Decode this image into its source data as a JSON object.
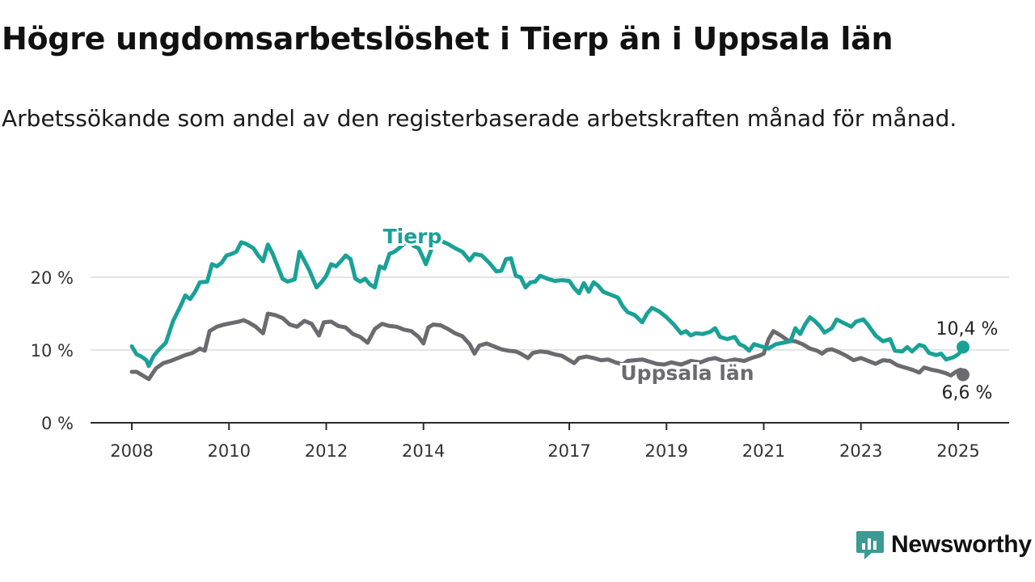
{
  "title": "Högre ungdomsarbetslöshet i Tierp än i Uppsala län",
  "subtitle": "Arbetssökande som andel av den registerbaserade arbetskraften månad för månad.",
  "brand": {
    "name": "Newsworthy",
    "icon": "newsworthy-logo-icon",
    "color": "#3a9b93"
  },
  "chart_data": {
    "type": "line",
    "title": "Högre ungdomsarbetslöshet i Tierp än i Uppsala län",
    "subtitle": "Arbetssökande som andel av den registerbaserade arbetskraften månad för månad.",
    "xlabel": "",
    "ylabel": "",
    "x_range": [
      2008.0,
      2025.1
    ],
    "ylim": [
      0,
      26
    ],
    "y_ticks": [
      0,
      10,
      20
    ],
    "y_tick_labels": [
      "0 %",
      "10 %",
      "20 %"
    ],
    "x_ticks": [
      2008,
      2010,
      2012,
      2014,
      2017,
      2019,
      2021,
      2023,
      2025
    ],
    "x_tick_labels": [
      "2008",
      "2010",
      "2012",
      "2014",
      "2017",
      "2019",
      "2021",
      "2023",
      "2025"
    ],
    "grid": "horizontal",
    "series": [
      {
        "name": "Tierp",
        "color": "#1aa197",
        "last_label": "10,4 %",
        "points": [
          [
            2008.0,
            10.5
          ],
          [
            2008.1,
            9.4
          ],
          [
            2008.2,
            9.1
          ],
          [
            2008.3,
            8.6
          ],
          [
            2008.35,
            7.8
          ],
          [
            2008.45,
            9.2
          ],
          [
            2008.55,
            10.0
          ],
          [
            2008.7,
            11.0
          ],
          [
            2008.85,
            14.0
          ],
          [
            2009.0,
            16.0
          ],
          [
            2009.1,
            17.5
          ],
          [
            2009.2,
            17.0
          ],
          [
            2009.3,
            18.0
          ],
          [
            2009.4,
            19.3
          ],
          [
            2009.55,
            19.4
          ],
          [
            2009.65,
            21.8
          ],
          [
            2009.75,
            21.5
          ],
          [
            2009.85,
            22.0
          ],
          [
            2009.95,
            23.0
          ],
          [
            2010.05,
            23.2
          ],
          [
            2010.15,
            23.5
          ],
          [
            2010.25,
            24.8
          ],
          [
            2010.35,
            24.6
          ],
          [
            2010.5,
            24.0
          ],
          [
            2010.6,
            23.0
          ],
          [
            2010.7,
            22.2
          ],
          [
            2010.8,
            24.5
          ],
          [
            2010.9,
            23.2
          ],
          [
            2011.0,
            21.5
          ],
          [
            2011.1,
            19.8
          ],
          [
            2011.2,
            19.4
          ],
          [
            2011.35,
            19.7
          ],
          [
            2011.45,
            23.5
          ],
          [
            2011.55,
            22.3
          ],
          [
            2011.65,
            21.0
          ],
          [
            2011.8,
            18.6
          ],
          [
            2011.9,
            19.3
          ],
          [
            2012.0,
            20.2
          ],
          [
            2012.1,
            21.8
          ],
          [
            2012.2,
            21.5
          ],
          [
            2012.3,
            22.2
          ],
          [
            2012.4,
            23.0
          ],
          [
            2012.5,
            22.5
          ],
          [
            2012.6,
            19.8
          ],
          [
            2012.7,
            19.4
          ],
          [
            2012.8,
            19.8
          ],
          [
            2012.9,
            19.0
          ],
          [
            2013.0,
            18.6
          ],
          [
            2013.1,
            21.5
          ],
          [
            2013.2,
            21.2
          ],
          [
            2013.3,
            23.2
          ],
          [
            2013.4,
            23.5
          ],
          [
            2013.5,
            24.0
          ],
          [
            2013.6,
            24.6
          ],
          [
            2013.7,
            25.0
          ],
          [
            2013.8,
            24.3
          ],
          [
            2013.9,
            24.0
          ],
          [
            2013.97,
            23.0
          ],
          [
            2014.05,
            21.8
          ],
          [
            2014.2,
            24.5
          ],
          [
            2014.35,
            25.0
          ],
          [
            2014.5,
            24.6
          ],
          [
            2014.65,
            24.0
          ],
          [
            2014.8,
            23.5
          ],
          [
            2014.95,
            22.3
          ],
          [
            2015.05,
            23.2
          ],
          [
            2015.2,
            23.0
          ],
          [
            2015.35,
            22.0
          ],
          [
            2015.5,
            20.8
          ],
          [
            2015.6,
            20.9
          ],
          [
            2015.7,
            22.5
          ],
          [
            2015.8,
            22.6
          ],
          [
            2015.9,
            20.2
          ],
          [
            2016.0,
            20.0
          ],
          [
            2016.1,
            18.6
          ],
          [
            2016.2,
            19.3
          ],
          [
            2016.3,
            19.4
          ],
          [
            2016.4,
            20.2
          ],
          [
            2016.55,
            19.8
          ],
          [
            2016.7,
            19.5
          ],
          [
            2016.85,
            19.6
          ],
          [
            2017.0,
            19.5
          ],
          [
            2017.1,
            18.5
          ],
          [
            2017.2,
            17.8
          ],
          [
            2017.3,
            19.2
          ],
          [
            2017.4,
            18.0
          ],
          [
            2017.5,
            19.3
          ],
          [
            2017.6,
            18.8
          ],
          [
            2017.7,
            18.0
          ],
          [
            2017.85,
            17.6
          ],
          [
            2018.0,
            17.2
          ],
          [
            2018.1,
            16.0
          ],
          [
            2018.2,
            15.2
          ],
          [
            2018.35,
            14.8
          ],
          [
            2018.5,
            13.8
          ],
          [
            2018.6,
            15.0
          ],
          [
            2018.7,
            15.8
          ],
          [
            2018.85,
            15.3
          ],
          [
            2019.0,
            14.5
          ],
          [
            2019.15,
            13.5
          ],
          [
            2019.3,
            12.3
          ],
          [
            2019.4,
            12.6
          ],
          [
            2019.5,
            12.0
          ],
          [
            2019.6,
            12.3
          ],
          [
            2019.75,
            12.2
          ],
          [
            2019.9,
            12.5
          ],
          [
            2020.0,
            13.0
          ],
          [
            2020.1,
            11.8
          ],
          [
            2020.25,
            11.5
          ],
          [
            2020.4,
            11.8
          ],
          [
            2020.5,
            10.8
          ],
          [
            2020.6,
            10.5
          ],
          [
            2020.7,
            9.9
          ],
          [
            2020.8,
            10.8
          ],
          [
            2020.95,
            10.5
          ],
          [
            2021.1,
            10.2
          ],
          [
            2021.25,
            10.8
          ],
          [
            2021.4,
            11.0
          ],
          [
            2021.55,
            11.2
          ],
          [
            2021.65,
            13.0
          ],
          [
            2021.75,
            12.2
          ],
          [
            2021.85,
            13.5
          ],
          [
            2021.95,
            14.5
          ],
          [
            2022.05,
            14.0
          ],
          [
            2022.15,
            13.3
          ],
          [
            2022.25,
            12.4
          ],
          [
            2022.4,
            13.0
          ],
          [
            2022.5,
            14.2
          ],
          [
            2022.65,
            13.7
          ],
          [
            2022.8,
            13.2
          ],
          [
            2022.9,
            13.9
          ],
          [
            2023.05,
            14.2
          ],
          [
            2023.15,
            13.4
          ],
          [
            2023.3,
            12.0
          ],
          [
            2023.45,
            11.2
          ],
          [
            2023.6,
            11.5
          ],
          [
            2023.7,
            9.9
          ],
          [
            2023.85,
            9.8
          ],
          [
            2023.95,
            10.4
          ],
          [
            2024.05,
            9.8
          ],
          [
            2024.2,
            10.7
          ],
          [
            2024.3,
            10.5
          ],
          [
            2024.4,
            9.6
          ],
          [
            2024.55,
            9.3
          ],
          [
            2024.65,
            9.5
          ],
          [
            2024.75,
            8.7
          ],
          [
            2024.9,
            9.0
          ],
          [
            2025.0,
            9.4
          ],
          [
            2025.05,
            9.8
          ],
          [
            2025.1,
            10.4
          ]
        ]
      },
      {
        "name": "Uppsala län",
        "color": "#6b6a6f",
        "last_label": "6,6 %",
        "points": [
          [
            2008.0,
            7.0
          ],
          [
            2008.1,
            7.0
          ],
          [
            2008.2,
            6.6
          ],
          [
            2008.35,
            6.0
          ],
          [
            2008.5,
            7.5
          ],
          [
            2008.65,
            8.2
          ],
          [
            2008.8,
            8.5
          ],
          [
            2008.95,
            8.9
          ],
          [
            2009.1,
            9.3
          ],
          [
            2009.25,
            9.6
          ],
          [
            2009.4,
            10.2
          ],
          [
            2009.5,
            9.9
          ],
          [
            2009.6,
            12.6
          ],
          [
            2009.75,
            13.2
          ],
          [
            2009.9,
            13.5
          ],
          [
            2010.05,
            13.7
          ],
          [
            2010.2,
            13.9
          ],
          [
            2010.3,
            14.1
          ],
          [
            2010.4,
            13.8
          ],
          [
            2010.55,
            13.2
          ],
          [
            2010.7,
            12.3
          ],
          [
            2010.8,
            15.0
          ],
          [
            2010.95,
            14.8
          ],
          [
            2011.1,
            14.4
          ],
          [
            2011.25,
            13.5
          ],
          [
            2011.4,
            13.2
          ],
          [
            2011.55,
            14.0
          ],
          [
            2011.7,
            13.6
          ],
          [
            2011.85,
            12.0
          ],
          [
            2011.95,
            13.8
          ],
          [
            2012.1,
            13.9
          ],
          [
            2012.25,
            13.3
          ],
          [
            2012.4,
            13.1
          ],
          [
            2012.55,
            12.2
          ],
          [
            2012.7,
            11.8
          ],
          [
            2012.85,
            11.0
          ],
          [
            2013.0,
            12.9
          ],
          [
            2013.15,
            13.6
          ],
          [
            2013.3,
            13.3
          ],
          [
            2013.45,
            13.2
          ],
          [
            2013.6,
            12.8
          ],
          [
            2013.75,
            12.6
          ],
          [
            2013.9,
            11.8
          ],
          [
            2014.0,
            10.9
          ],
          [
            2014.1,
            13.1
          ],
          [
            2014.2,
            13.5
          ],
          [
            2014.35,
            13.4
          ],
          [
            2014.5,
            12.9
          ],
          [
            2014.65,
            12.3
          ],
          [
            2014.8,
            11.9
          ],
          [
            2014.95,
            10.8
          ],
          [
            2015.05,
            9.5
          ],
          [
            2015.15,
            10.6
          ],
          [
            2015.3,
            10.9
          ],
          [
            2015.45,
            10.5
          ],
          [
            2015.6,
            10.1
          ],
          [
            2015.75,
            9.9
          ],
          [
            2015.9,
            9.8
          ],
          [
            2016.0,
            9.5
          ],
          [
            2016.15,
            8.9
          ],
          [
            2016.25,
            9.6
          ],
          [
            2016.4,
            9.8
          ],
          [
            2016.55,
            9.7
          ],
          [
            2016.7,
            9.4
          ],
          [
            2016.85,
            9.2
          ],
          [
            2017.0,
            8.6
          ],
          [
            2017.1,
            8.2
          ],
          [
            2017.2,
            8.9
          ],
          [
            2017.35,
            9.1
          ],
          [
            2017.5,
            8.9
          ],
          [
            2017.65,
            8.6
          ],
          [
            2017.8,
            8.7
          ],
          [
            2017.95,
            8.3
          ],
          [
            2018.1,
            8.0
          ],
          [
            2018.2,
            8.5
          ],
          [
            2018.35,
            8.6
          ],
          [
            2018.5,
            8.7
          ],
          [
            2018.65,
            8.4
          ],
          [
            2018.8,
            8.1
          ],
          [
            2018.95,
            8.0
          ],
          [
            2019.1,
            8.3
          ],
          [
            2019.3,
            8.0
          ],
          [
            2019.5,
            8.5
          ],
          [
            2019.7,
            8.3
          ],
          [
            2019.85,
            8.7
          ],
          [
            2020.0,
            8.9
          ],
          [
            2020.2,
            8.4
          ],
          [
            2020.4,
            8.7
          ],
          [
            2020.6,
            8.5
          ],
          [
            2020.75,
            8.9
          ],
          [
            2020.9,
            9.2
          ],
          [
            2021.0,
            9.5
          ],
          [
            2021.1,
            11.5
          ],
          [
            2021.2,
            12.6
          ],
          [
            2021.35,
            12.0
          ],
          [
            2021.5,
            11.3
          ],
          [
            2021.65,
            11.2
          ],
          [
            2021.8,
            10.8
          ],
          [
            2021.95,
            10.2
          ],
          [
            2022.1,
            9.9
          ],
          [
            2022.2,
            9.5
          ],
          [
            2022.3,
            10.0
          ],
          [
            2022.4,
            10.1
          ],
          [
            2022.55,
            9.7
          ],
          [
            2022.7,
            9.2
          ],
          [
            2022.85,
            8.6
          ],
          [
            2023.0,
            8.9
          ],
          [
            2023.15,
            8.5
          ],
          [
            2023.3,
            8.1
          ],
          [
            2023.45,
            8.6
          ],
          [
            2023.6,
            8.5
          ],
          [
            2023.75,
            7.9
          ],
          [
            2023.9,
            7.6
          ],
          [
            2024.05,
            7.3
          ],
          [
            2024.2,
            6.9
          ],
          [
            2024.3,
            7.6
          ],
          [
            2024.45,
            7.3
          ],
          [
            2024.6,
            7.1
          ],
          [
            2024.75,
            6.8
          ],
          [
            2024.85,
            6.5
          ],
          [
            2024.95,
            7.0
          ],
          [
            2025.05,
            7.3
          ],
          [
            2025.1,
            6.6
          ]
        ]
      }
    ]
  }
}
